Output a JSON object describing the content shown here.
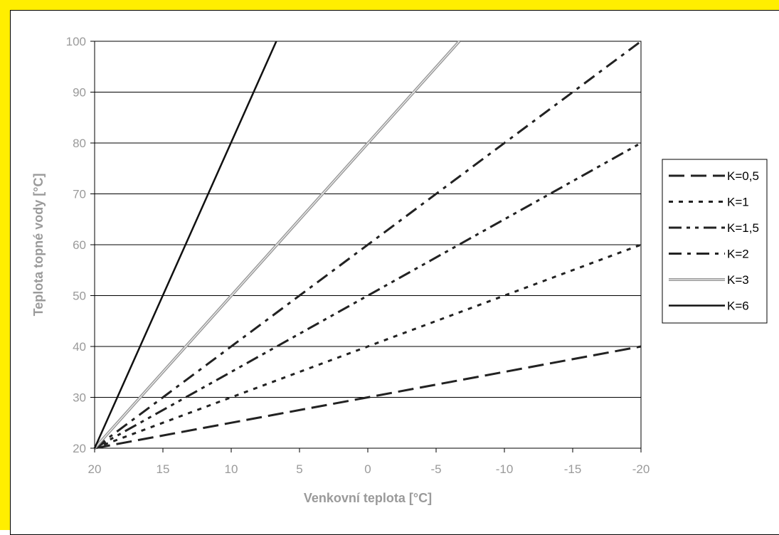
{
  "chart_data": {
    "type": "line",
    "title": "",
    "xlabel": "Venkovní teplota [°C]",
    "ylabel": "Teplota topné vody [°C]",
    "xlim": [
      20,
      -20
    ],
    "ylim": [
      20,
      100
    ],
    "x_ticks": [
      "20",
      "15",
      "10",
      "5",
      "0",
      "-5",
      "-10",
      "-15",
      "-20"
    ],
    "y_ticks": [
      "20",
      "30",
      "40",
      "50",
      "60",
      "70",
      "80",
      "90",
      "100"
    ],
    "grid": true,
    "legend_position": "right",
    "series": [
      {
        "name": "K=0,5",
        "style": "long-dash",
        "color": "#222222",
        "x": [
          20,
          -20
        ],
        "y": [
          20,
          40
        ]
      },
      {
        "name": "K=1",
        "style": "dotted",
        "color": "#222222",
        "x": [
          20,
          -20
        ],
        "y": [
          20,
          60
        ]
      },
      {
        "name": "K=1,5",
        "style": "dash-dot-dot",
        "color": "#222222",
        "x": [
          20,
          -20
        ],
        "y": [
          20,
          80
        ]
      },
      {
        "name": "K=2",
        "style": "dash-dot",
        "color": "#222222",
        "x": [
          20,
          -20
        ],
        "y": [
          20,
          100
        ]
      },
      {
        "name": "K=3",
        "style": "double-gray",
        "color": "#9a9a9a",
        "x": [
          20,
          -6.7
        ],
        "y": [
          20,
          100
        ]
      },
      {
        "name": "K=6",
        "style": "solid",
        "color": "#111111",
        "x": [
          20,
          6.7
        ],
        "y": [
          20,
          100
        ]
      }
    ]
  }
}
